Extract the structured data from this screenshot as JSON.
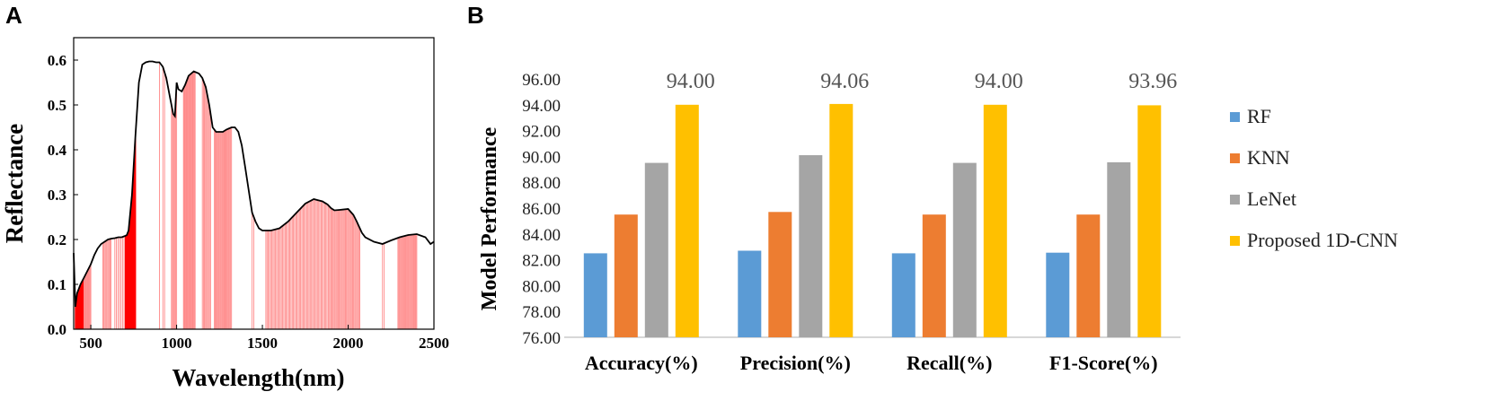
{
  "chart_data": [
    {
      "panel": "A",
      "type": "line",
      "xlabel": "Wavelength(nm)",
      "ylabel": "Reflectance",
      "xlim": [
        400,
        2500
      ],
      "ylim": [
        0,
        0.65
      ],
      "x_ticks": [
        500,
        1000,
        1500,
        2000,
        2500
      ],
      "y_ticks": [
        0.0,
        0.1,
        0.2,
        0.3,
        0.4,
        0.5,
        0.6
      ],
      "x_tick_labels": [
        "500",
        "1000",
        "1500",
        "2000",
        "2500"
      ],
      "y_tick_labels": [
        "0.0",
        "0.1",
        "0.2",
        "0.3",
        "0.4",
        "0.5",
        "0.6"
      ],
      "series": [
        {
          "x": [
            400,
            410,
            420,
            440,
            460,
            480,
            500,
            520,
            540,
            560,
            580,
            600,
            620,
            640,
            660,
            680,
            700,
            710,
            720,
            740,
            760,
            780,
            800,
            820,
            840,
            860,
            880,
            900,
            920,
            940,
            960,
            980,
            990,
            1000,
            1010,
            1030,
            1050,
            1070,
            1100,
            1130,
            1150,
            1170,
            1190,
            1210,
            1230,
            1250,
            1270,
            1290,
            1320,
            1340,
            1360,
            1380,
            1400,
            1420,
            1440,
            1460,
            1480,
            1500,
            1520,
            1550,
            1600,
            1650,
            1700,
            1750,
            1800,
            1830,
            1850,
            1880,
            1900,
            1920,
            1950,
            2000,
            2030,
            2050,
            2080,
            2100,
            2150,
            2200,
            2250,
            2300,
            2350,
            2400,
            2450,
            2480,
            2500
          ],
          "y": [
            0.17,
            0.05,
            0.08,
            0.1,
            0.115,
            0.13,
            0.145,
            0.165,
            0.18,
            0.19,
            0.195,
            0.2,
            0.202,
            0.203,
            0.205,
            0.205,
            0.208,
            0.21,
            0.22,
            0.3,
            0.43,
            0.55,
            0.59,
            0.595,
            0.597,
            0.597,
            0.595,
            0.595,
            0.585,
            0.56,
            0.52,
            0.48,
            0.475,
            0.55,
            0.535,
            0.53,
            0.545,
            0.565,
            0.575,
            0.57,
            0.56,
            0.54,
            0.5,
            0.45,
            0.44,
            0.44,
            0.44,
            0.445,
            0.45,
            0.45,
            0.44,
            0.41,
            0.36,
            0.31,
            0.26,
            0.24,
            0.225,
            0.22,
            0.22,
            0.22,
            0.225,
            0.24,
            0.26,
            0.28,
            0.29,
            0.287,
            0.285,
            0.278,
            0.27,
            0.265,
            0.266,
            0.268,
            0.255,
            0.24,
            0.215,
            0.205,
            0.195,
            0.19,
            0.198,
            0.205,
            0.21,
            0.212,
            0.205,
            0.19,
            0.195
          ]
        }
      ]
    },
    {
      "panel": "B",
      "type": "bar",
      "ylabel": "Model Performance",
      "ylim": [
        76,
        96
      ],
      "y_ticks": [
        76,
        78,
        80,
        82,
        84,
        86,
        88,
        90,
        92,
        94,
        96
      ],
      "y_tick_labels": [
        "76.00",
        "78.00",
        "80.00",
        "82.00",
        "84.00",
        "86.00",
        "88.00",
        "90.00",
        "92.00",
        "94.00",
        "96.00"
      ],
      "categories": [
        "Accuracy(%)",
        "Precision(%)",
        "Recall(%)",
        "F1-Score(%)"
      ],
      "legend_position": "right",
      "series": [
        {
          "name": "RF",
          "color": "#5b9bd5",
          "values": [
            82.5,
            82.7,
            82.5,
            82.55
          ]
        },
        {
          "name": "KNN",
          "color": "#ed7d31",
          "values": [
            85.5,
            85.7,
            85.5,
            85.5
          ]
        },
        {
          "name": "LeNet",
          "color": "#a5a5a5",
          "values": [
            89.5,
            90.1,
            89.5,
            89.55
          ]
        },
        {
          "name": "Proposed 1D-CNN",
          "color": "#ffc000",
          "values": [
            94.0,
            94.06,
            94.0,
            93.96
          ]
        }
      ],
      "data_labels": [
        "94.00",
        "94.06",
        "94.00",
        "93.96"
      ]
    }
  ],
  "panels": {
    "a_label": "A",
    "b_label": "B"
  }
}
